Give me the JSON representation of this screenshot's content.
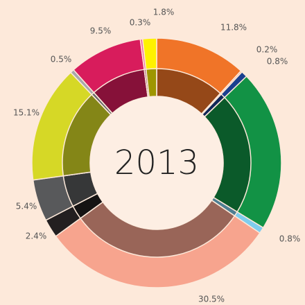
{
  "chart_data": {
    "type": "donut",
    "title": "2013",
    "categories": [
      null,
      null,
      null,
      null,
      null,
      null,
      null,
      null,
      null,
      null,
      null,
      null,
      null
    ],
    "values": [
      11.8,
      0.2,
      0.8,
      20.9,
      0.8,
      30.5,
      2.4,
      5.4,
      15.1,
      0.5,
      9.5,
      0.3,
      1.8
    ],
    "value_labels": [
      "11.8%",
      "0.2%",
      "0.8%",
      null,
      "0.8%",
      "30.5%",
      "2.4%",
      "5.4%",
      "15.1%",
      "0.5%",
      "9.5%",
      "0.3%",
      "1.8%"
    ],
    "colors": [
      "#f07428",
      "#f4a58a",
      "#1a3f8f",
      "#129245",
      "#7fcdee",
      "#f7a48e",
      "#231f20",
      "#58595b",
      "#d6d826",
      "#a7a9ac",
      "#d81c5c",
      "#f06ca0",
      "#fff200"
    ]
  }
}
